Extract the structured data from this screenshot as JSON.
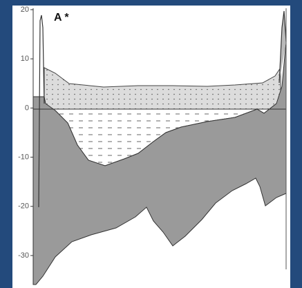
{
  "panel": {
    "label": "A *",
    "axis": {
      "ticks": [
        20,
        10,
        0,
        -10,
        -20,
        -30
      ]
    }
  }
}
